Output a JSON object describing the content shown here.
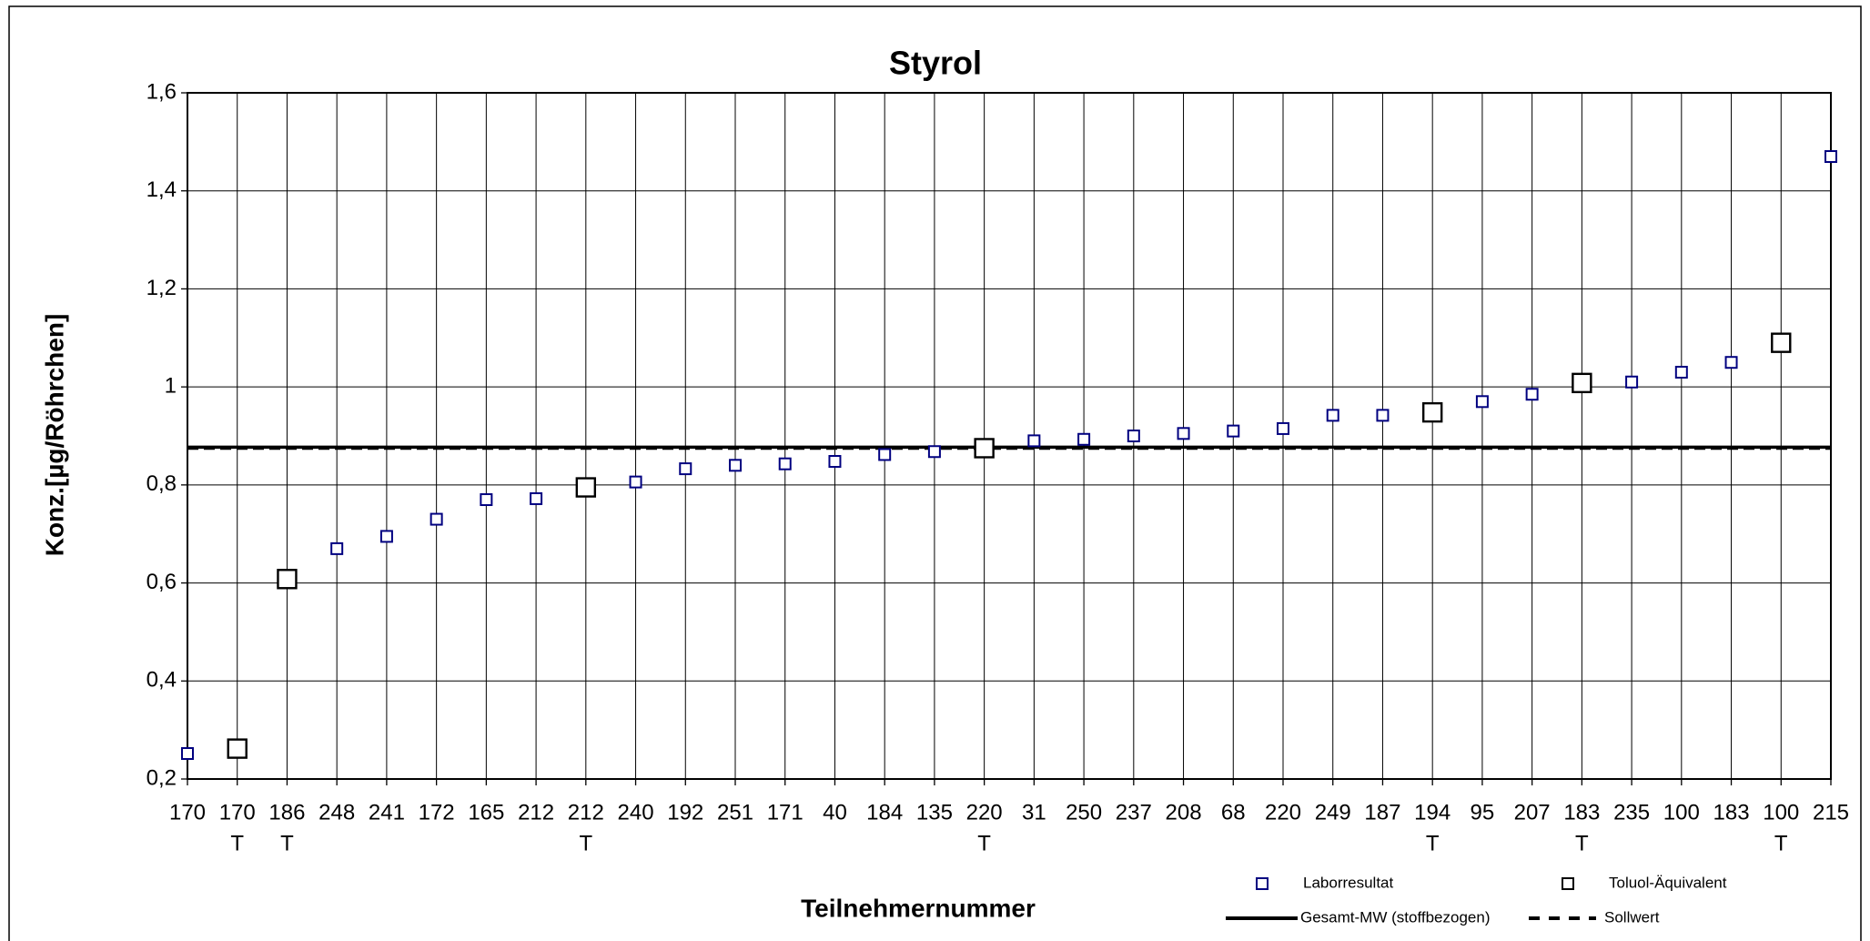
{
  "chart_data": {
    "type": "scatter",
    "title": "Styrol",
    "x_label": "Teilnehmernummer",
    "y_label": "Konz.[µg/Röhrchen]",
    "categories": [
      "170",
      "170",
      "186",
      "248",
      "241",
      "172",
      "165",
      "212",
      "212",
      "240",
      "192",
      "251",
      "171",
      "40",
      "184",
      "135",
      "220",
      "31",
      "250",
      "237",
      "208",
      "68",
      "220",
      "249",
      "187",
      "194",
      "95",
      "207",
      "183",
      "235",
      "100",
      "183",
      "100",
      "215"
    ],
    "sublabels": [
      null,
      "T",
      "T",
      null,
      null,
      null,
      null,
      null,
      "T",
      null,
      null,
      null,
      null,
      null,
      null,
      null,
      "T",
      null,
      null,
      null,
      null,
      null,
      null,
      null,
      null,
      "T",
      null,
      null,
      "T",
      null,
      null,
      null,
      "T",
      null
    ],
    "series": [
      {
        "name": "Laborresultat",
        "color": "#000080",
        "marker": "small",
        "values": [
          0.252,
          null,
          null,
          0.67,
          0.695,
          0.73,
          0.77,
          0.772,
          null,
          0.806,
          0.833,
          0.84,
          0.843,
          0.848,
          0.862,
          0.868,
          null,
          0.89,
          0.893,
          0.9,
          0.905,
          0.91,
          0.915,
          0.942,
          0.942,
          null,
          0.97,
          0.985,
          null,
          1.01,
          1.03,
          1.05,
          null,
          1.47
        ]
      },
      {
        "name": "Toluol-Äquivalent",
        "color": "#000000",
        "marker": "large",
        "values": [
          null,
          0.262,
          0.608,
          null,
          null,
          null,
          null,
          null,
          0.795,
          null,
          null,
          null,
          null,
          null,
          null,
          null,
          0.875,
          null,
          null,
          null,
          null,
          null,
          null,
          null,
          null,
          0.948,
          null,
          null,
          1.008,
          null,
          null,
          null,
          1.09,
          null
        ]
      }
    ],
    "hlines": [
      {
        "name": "Gesamt-MW (stoffbezogen)",
        "value": 0.877,
        "style": "solid",
        "color": "#000000"
      },
      {
        "name": "Sollwert",
        "value": 0.875,
        "style": "dashed",
        "color": "#000000"
      }
    ],
    "ylim": [
      0.2,
      1.6
    ],
    "yticks": [
      {
        "value": 0.2,
        "label": "0,2"
      },
      {
        "value": 0.4,
        "label": "0,4"
      },
      {
        "value": 0.6,
        "label": "0,6"
      },
      {
        "value": 0.8,
        "label": "0,8"
      },
      1,
      {
        "value": 1.2,
        "label": "1,2"
      },
      {
        "value": 1.4,
        "label": "1,4"
      },
      {
        "value": 1.6,
        "label": "1,6"
      }
    ],
    "grid": true
  }
}
